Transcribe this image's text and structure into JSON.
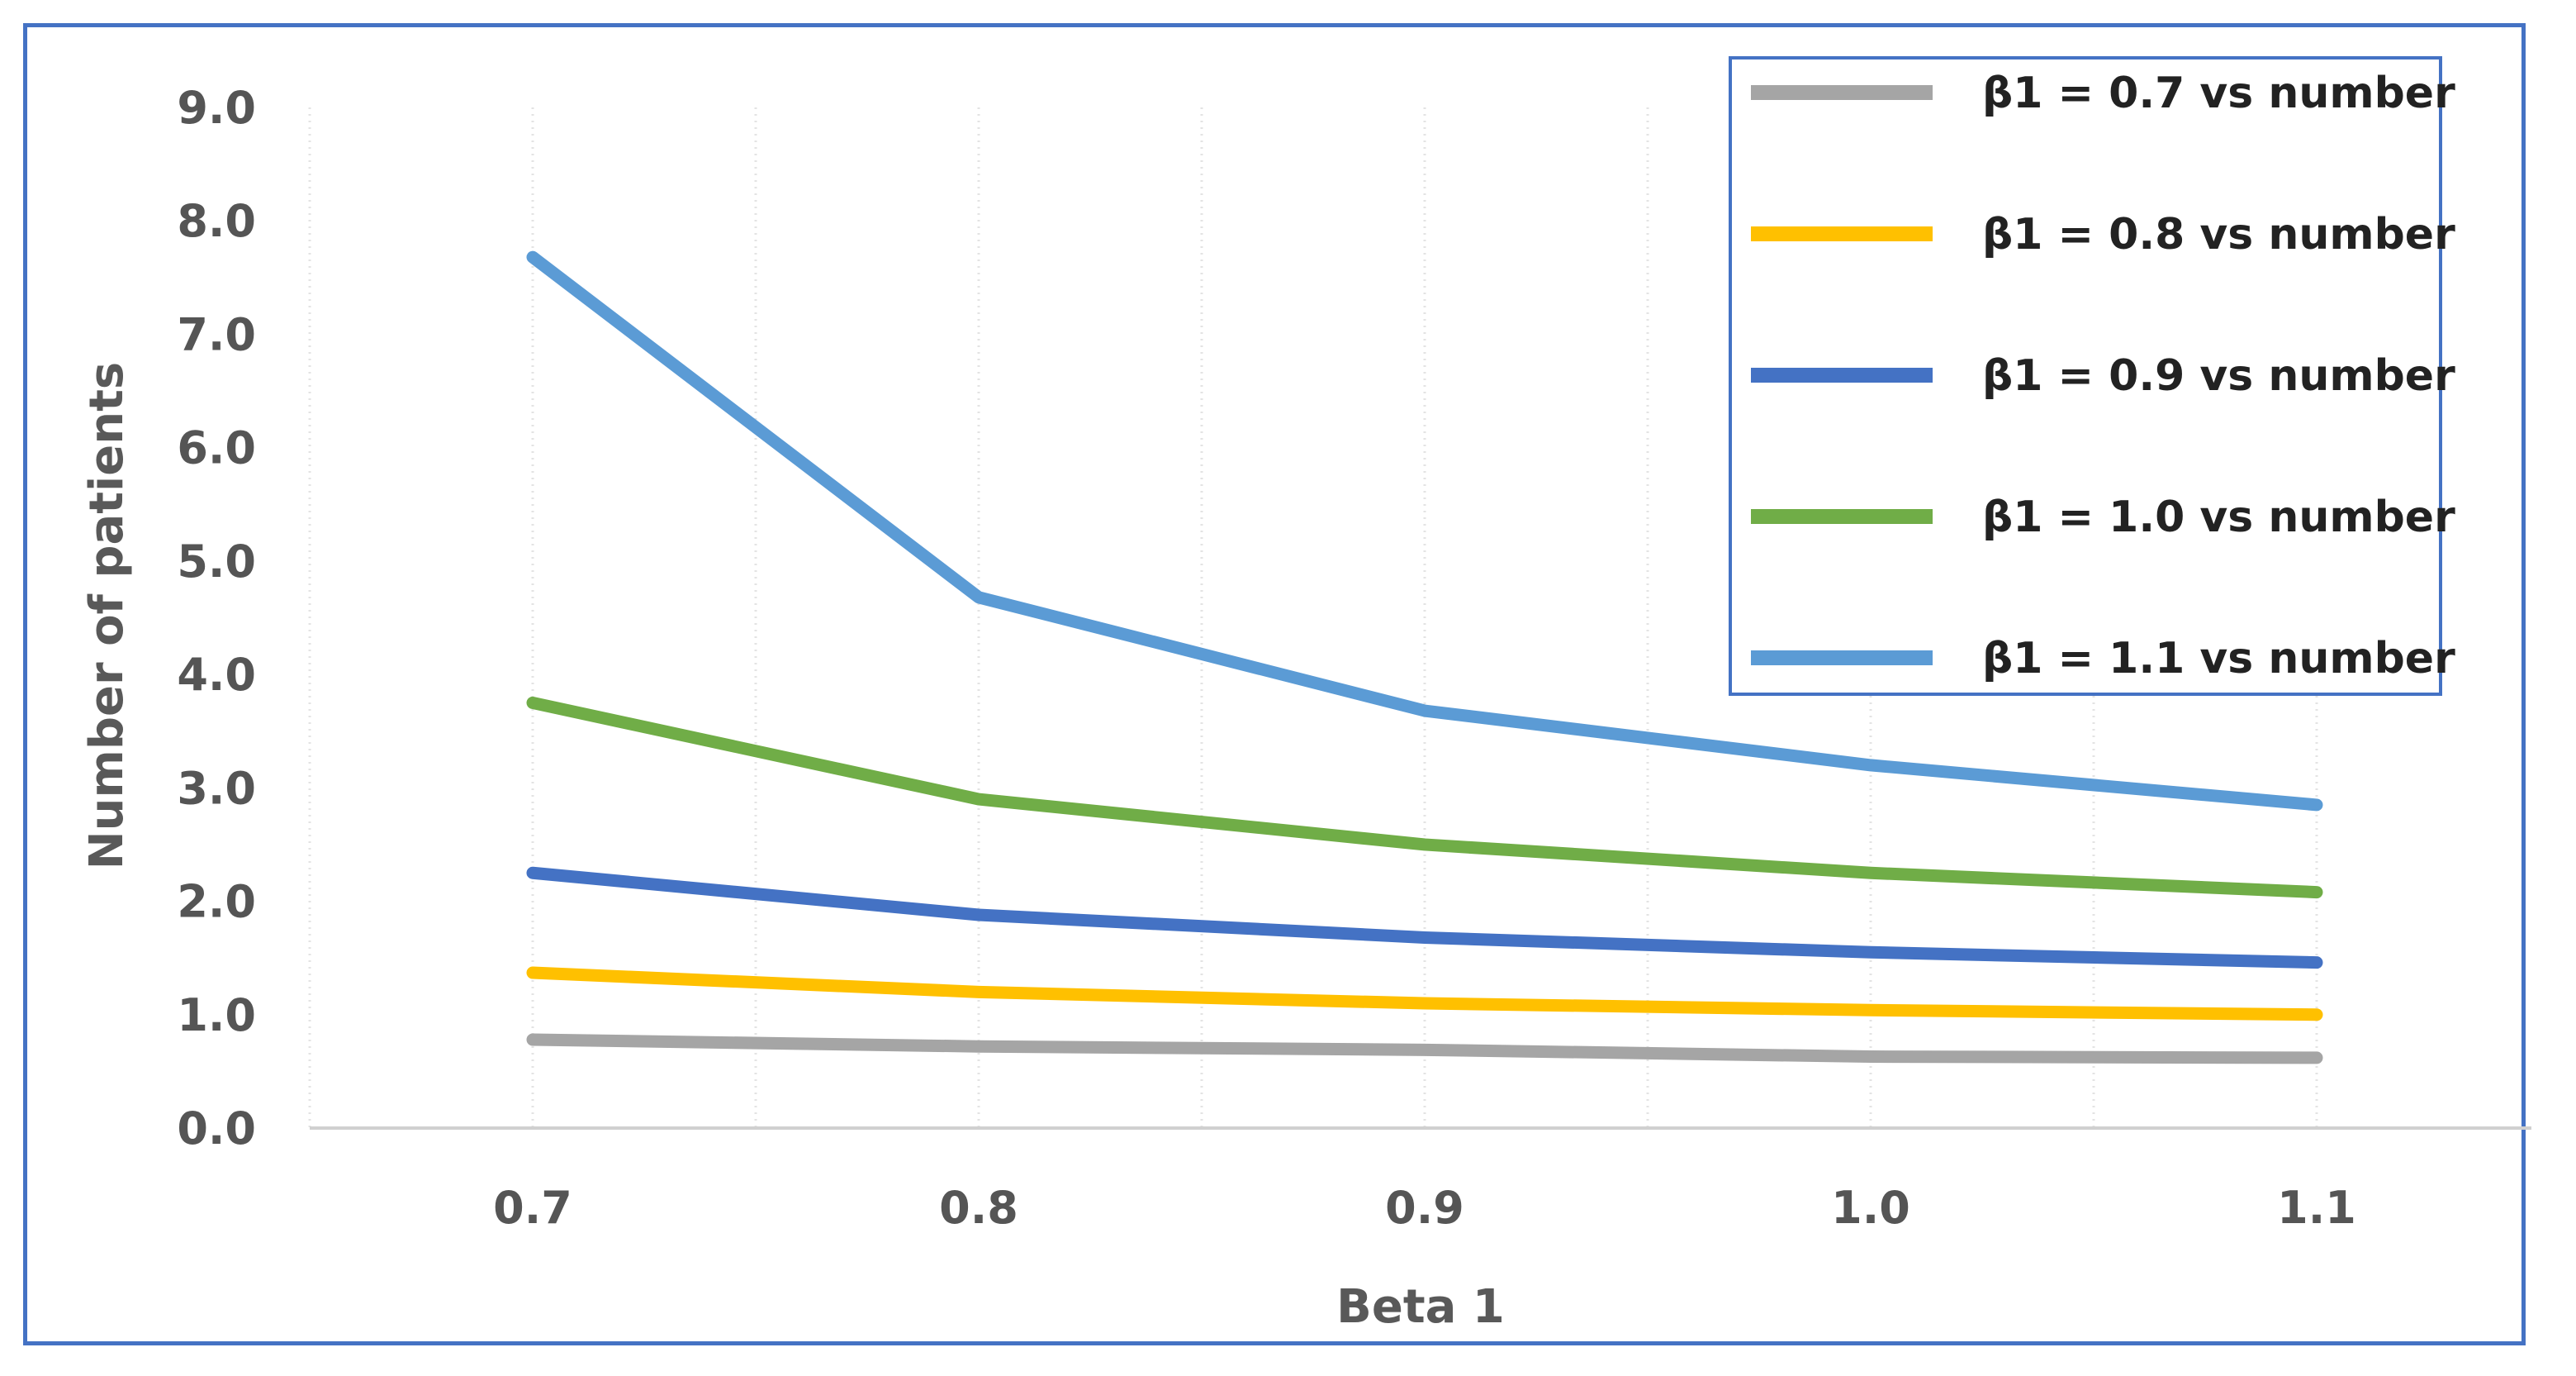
{
  "chart_data": {
    "type": "line",
    "title": "",
    "xlabel": "Beta 1",
    "ylabel": "Number of patients",
    "x": [
      0.7,
      0.8,
      0.9,
      1.0,
      1.1
    ],
    "x_tick_labels": [
      "0.7",
      "0.8",
      "0.9",
      "1.0",
      "1.1"
    ],
    "ylim": [
      0,
      9
    ],
    "y_tick_labels": [
      "0.0",
      "1.0",
      "2.0",
      "3.0",
      "4.0",
      "5.0",
      "6.0",
      "7.0",
      "8.0",
      "9.0"
    ],
    "grid": "vertical",
    "legend_position": "top-right",
    "series": [
      {
        "name": "β1 = 0.7 vs number",
        "color": "#a5a5a5",
        "values": [
          0.78,
          0.72,
          0.69,
          0.63,
          0.62
        ]
      },
      {
        "name": "β1 = 0.8 vs number",
        "color": "#ffc000",
        "values": [
          1.37,
          1.2,
          1.1,
          1.04,
          1.0
        ]
      },
      {
        "name": "β1 = 0.9 vs number",
        "color": "#4472c4",
        "values": [
          2.25,
          1.88,
          1.68,
          1.55,
          1.46
        ]
      },
      {
        "name": "β1 = 1.0 vs number",
        "color": "#70ad47",
        "values": [
          3.75,
          2.9,
          2.5,
          2.25,
          2.08
        ]
      },
      {
        "name": "β1 = 1.1 vs number",
        "color": "#5b9bd5",
        "values": [
          7.68,
          4.68,
          3.68,
          3.2,
          2.85
        ]
      }
    ]
  }
}
